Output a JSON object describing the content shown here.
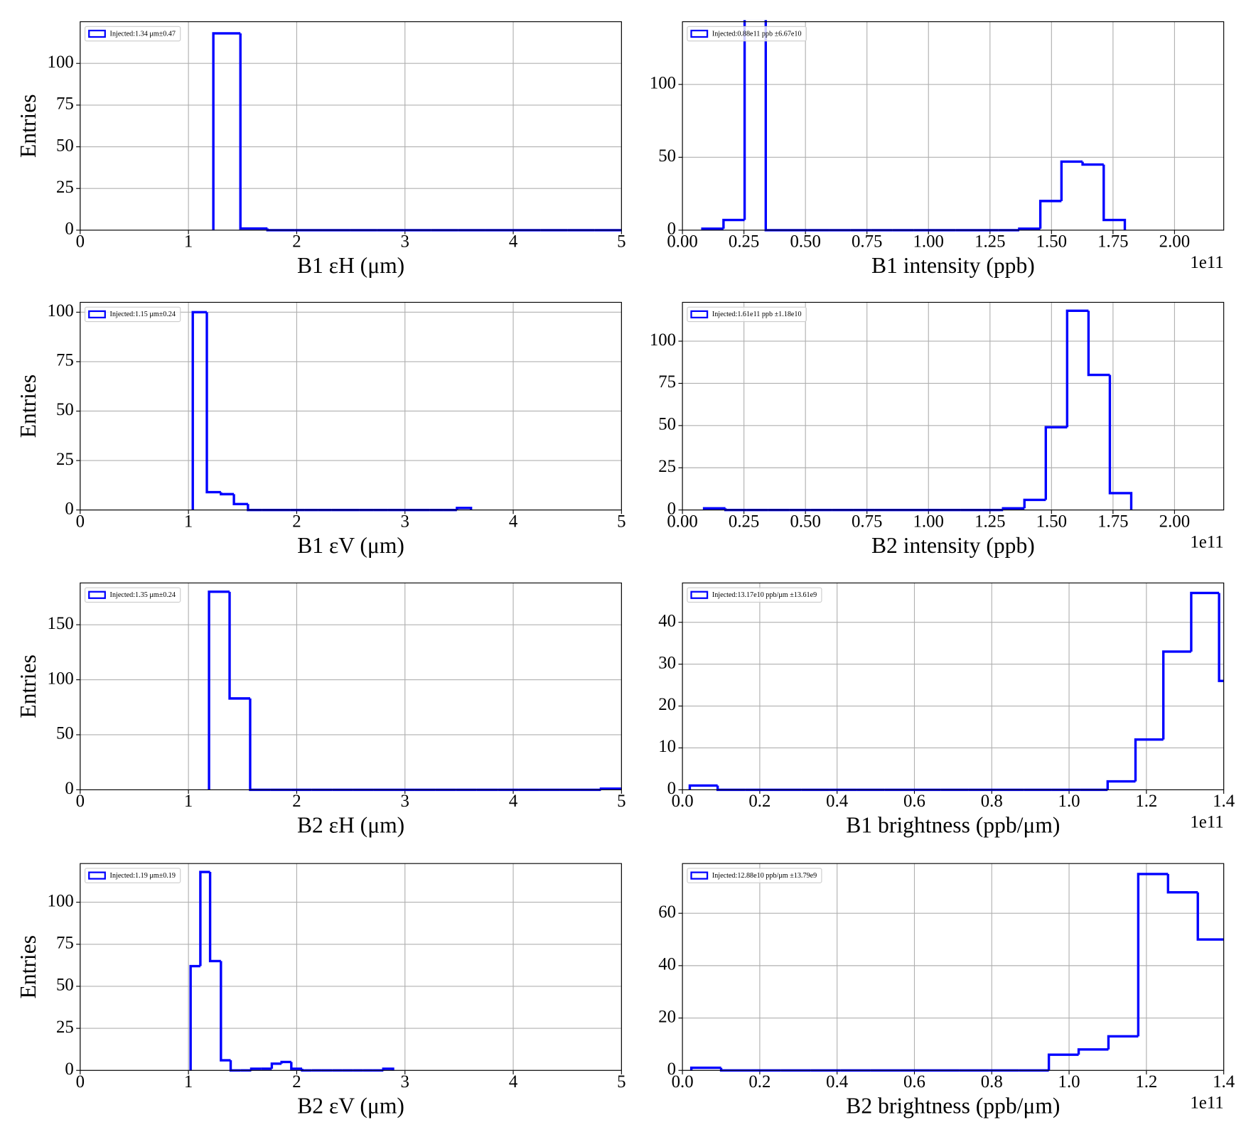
{
  "chart_data": [
    {
      "type": "histogram",
      "xlabel": "B1 εH (μm)",
      "ylabel": "Entries",
      "name": "Injected:1.34 μm±0.47",
      "color": "#0000ff",
      "legend": "upper left",
      "grid": true,
      "bins": [
        1.23,
        1.48,
        1.73,
        1.98,
        2.24,
        2.49,
        2.74,
        2.99,
        3.24,
        3.49,
        3.74,
        3.99,
        4.25,
        4.5,
        4.75,
        5.0
      ],
      "counts": [
        118,
        1,
        0,
        0,
        0,
        0,
        0,
        0,
        0,
        0,
        0,
        0,
        0,
        0,
        0
      ],
      "xlim": [
        0,
        5
      ],
      "xticks": [
        0,
        1,
        2,
        3,
        4,
        5
      ],
      "ylim": [
        0,
        125
      ],
      "yticks": [
        0,
        25,
        50,
        75,
        100
      ]
    },
    {
      "type": "histogram",
      "xlabel": "B1 intensity (ppb)",
      "offset_text": "1e11",
      "name": "Injected:0.88e11 ppb ±6.67e10",
      "color": "#0000ff",
      "legend": "upper left",
      "grid": true,
      "bins": [
        8100000000.0,
        16690000000.0,
        25270000000.0,
        33860000000.0,
        42440000000.0,
        51030000000.0,
        59610000000.0,
        68200000000.0,
        76780000000.0,
        85370000000.0,
        93950000000.0,
        102540000000.0,
        111120000000.0,
        119710000000.0,
        128290000000.0,
        136880000000.0,
        145460000000.0,
        154050000000.0,
        162630000000.0,
        171220000000.0,
        179800000000.0
      ],
      "counts": [
        1,
        7,
        145,
        0,
        0,
        0,
        0,
        0,
        0,
        0,
        0,
        0,
        0,
        0,
        0,
        1,
        20,
        47,
        45,
        7
      ],
      "xlim": [
        0,
        220000000000.0
      ],
      "xticks": [
        {
          "value": 0,
          "label": "0.00"
        },
        {
          "value": 25000000000.0,
          "label": "0.25"
        },
        {
          "value": 50000000000.0,
          "label": "0.50"
        },
        {
          "value": 75000000000.0,
          "label": "0.75"
        },
        {
          "value": 100000000000.0,
          "label": "1.00"
        },
        {
          "value": 125000000000.0,
          "label": "1.25"
        },
        {
          "value": 150000000000.0,
          "label": "1.50"
        },
        {
          "value": 175000000000.0,
          "label": "1.75"
        },
        {
          "value": 200000000000.0,
          "label": "2.00"
        }
      ],
      "ylim": [
        0,
        143
      ],
      "yticks": [
        0,
        50,
        100
      ]
    },
    {
      "type": "histogram",
      "xlabel": "B1 εV (μm)",
      "ylabel": "Entries",
      "name": "Injected:1.15 μm±0.24",
      "color": "#0000ff",
      "legend": "upper left",
      "grid": true,
      "bins": [
        1.04,
        1.17,
        1.3,
        1.42,
        1.55,
        1.68,
        1.81,
        1.94,
        2.07,
        2.2,
        2.32,
        2.45,
        2.58,
        2.71,
        2.84,
        2.97,
        3.1,
        3.23,
        3.35,
        3.48,
        3.61
      ],
      "counts": [
        100,
        9,
        8,
        3,
        0,
        0,
        0,
        0,
        0,
        0,
        0,
        0,
        0,
        0,
        0,
        0,
        0,
        0,
        0,
        1
      ],
      "xlim": [
        0,
        5
      ],
      "xticks": [
        0,
        1,
        2,
        3,
        4,
        5
      ],
      "ylim": [
        0,
        105
      ],
      "yticks": [
        0,
        25,
        50,
        75,
        100
      ]
    },
    {
      "type": "histogram",
      "xlabel": "B2 intensity (ppb)",
      "offset_text": "1e11",
      "name": "Injected:1.61e11 ppb ±1.18e10",
      "color": "#0000ff",
      "legend": "upper left",
      "grid": true,
      "bins": [
        8800000000.0,
        17480000000.0,
        26160000000.0,
        34840000000.0,
        43520000000.0,
        52200000000.0,
        60880000000.0,
        69560000000.0,
        78240000000.0,
        86920000000.0,
        95600000000.0,
        104280000000.0,
        112960000000.0,
        121640000000.0,
        130320000000.0,
        139000000000.0,
        147680000000.0,
        156360000000.0,
        165040000000.0,
        173720000000.0,
        182400000000.0
      ],
      "counts": [
        1,
        0,
        0,
        0,
        0,
        0,
        0,
        0,
        0,
        0,
        0,
        0,
        0,
        0,
        1,
        6,
        49,
        118,
        80,
        10
      ],
      "xlim": [
        0,
        220000000000.0
      ],
      "xticks": [
        {
          "value": 0,
          "label": "0.00"
        },
        {
          "value": 25000000000.0,
          "label": "0.25"
        },
        {
          "value": 50000000000.0,
          "label": "0.50"
        },
        {
          "value": 75000000000.0,
          "label": "0.75"
        },
        {
          "value": 100000000000.0,
          "label": "1.00"
        },
        {
          "value": 125000000000.0,
          "label": "1.25"
        },
        {
          "value": 150000000000.0,
          "label": "1.50"
        },
        {
          "value": 175000000000.0,
          "label": "1.75"
        },
        {
          "value": 200000000000.0,
          "label": "2.00"
        }
      ],
      "ylim": [
        0,
        123
      ],
      "yticks": [
        0,
        25,
        50,
        75,
        100
      ]
    },
    {
      "type": "histogram",
      "xlabel": "B2 εH (μm)",
      "ylabel": "Entries",
      "name": "Injected:1.35 μm±0.24",
      "color": "#0000ff",
      "legend": "upper left",
      "grid": true,
      "bins": [
        1.19,
        1.38,
        1.57,
        1.76,
        1.95,
        2.14,
        2.33,
        2.52,
        2.71,
        2.9,
        3.09,
        3.28,
        3.47,
        3.66,
        3.86,
        4.05,
        4.24,
        4.43,
        4.62,
        4.81,
        5.0
      ],
      "counts": [
        180,
        83,
        0,
        0,
        0,
        0,
        0,
        0,
        0,
        0,
        0,
        0,
        0,
        0,
        0,
        0,
        0,
        0,
        0,
        1
      ],
      "xlim": [
        0,
        5
      ],
      "xticks": [
        0,
        1,
        2,
        3,
        4,
        5
      ],
      "ylim": [
        0,
        188
      ],
      "yticks": [
        0,
        50,
        100,
        150
      ]
    },
    {
      "type": "histogram",
      "xlabel": "B1 brightness (ppb/μm)",
      "offset_text": "1e11",
      "name": "Injected:13.17e10 ppb/μm ±13.61e9",
      "color": "#0000ff",
      "legend": "upper left",
      "grid": true,
      "bins": [
        1900000000.0,
        9105000000.0,
        16310000000.0,
        23515000000.0,
        30720000000.0,
        37925000000.0,
        45130000000.0,
        52335000000.0,
        59540000000.0,
        66745000000.0,
        73950000000.0,
        81155000000.0,
        88360000000.0,
        95565000000.0,
        102770000000.0,
        109975000000.0,
        117180000000.0,
        124385000000.0,
        131590000000.0,
        138795000000.0,
        146000000000.0
      ],
      "counts": [
        1,
        0,
        0,
        0,
        0,
        0,
        0,
        0,
        0,
        0,
        0,
        0,
        0,
        0,
        0,
        2,
        12,
        33,
        47,
        26
      ],
      "xlim": [
        0,
        140000000000.0
      ],
      "xticks": [
        {
          "value": 0,
          "label": "0.0"
        },
        {
          "value": 20000000000.0,
          "label": "0.2"
        },
        {
          "value": 40000000000.0,
          "label": "0.4"
        },
        {
          "value": 60000000000.0,
          "label": "0.6"
        },
        {
          "value": 80000000000.0,
          "label": "0.8"
        },
        {
          "value": 100000000000.0,
          "label": "1.0"
        },
        {
          "value": 120000000000.0,
          "label": "1.2"
        },
        {
          "value": 140000000000.0,
          "label": "1.4"
        }
      ],
      "ylim": [
        0,
        49.4
      ],
      "yticks": [
        0,
        10,
        20,
        30,
        40
      ]
    },
    {
      "type": "histogram",
      "xlabel": "B2 εV (μm)",
      "ylabel": "Entries",
      "name": "Injected:1.19 μm±0.19",
      "color": "#0000ff",
      "legend": "upper left",
      "grid": true,
      "bins": [
        1.02,
        1.11,
        1.2,
        1.3,
        1.39,
        1.48,
        1.58,
        1.67,
        1.77,
        1.86,
        1.95,
        2.05,
        2.14,
        2.23,
        2.33,
        2.42,
        2.52,
        2.61,
        2.7,
        2.8,
        2.89
      ],
      "counts": [
        62,
        118,
        65,
        6,
        0,
        0,
        1,
        1,
        4,
        5,
        1,
        0,
        0,
        0,
        0,
        0,
        0,
        0,
        0,
        1
      ],
      "xlim": [
        0,
        5
      ],
      "xticks": [
        0,
        1,
        2,
        3,
        4,
        5
      ],
      "ylim": [
        0,
        123
      ],
      "yticks": [
        0,
        25,
        50,
        75,
        100
      ]
    },
    {
      "type": "histogram",
      "xlabel": "B2 brightness (ppb/μm)",
      "offset_text": "1e11",
      "name": "Injected:12.88e10 ppb/μm ±13.79e9",
      "color": "#0000ff",
      "legend": "upper left",
      "grid": true,
      "bins": [
        2300000000.0,
        10006000000.0,
        17712000000.0,
        25418000000.0,
        33124000000.0,
        40830000000.0,
        48536000000.0,
        56242000000.0,
        63948000000.0,
        71654000000.0,
        79360000000.0,
        87066000000.0,
        94772000000.0,
        102478000000.0,
        110184000000.0,
        117890000000.0,
        125596000000.0,
        133302000000.0,
        141008000000.0
      ],
      "counts": [
        1,
        0,
        0,
        0,
        0,
        0,
        0,
        0,
        0,
        0,
        0,
        0,
        6,
        8,
        13,
        75,
        68,
        50
      ],
      "xlim": [
        0,
        140000000000.0
      ],
      "xticks": [
        {
          "value": 0,
          "label": "0.0"
        },
        {
          "value": 20000000000.0,
          "label": "0.2"
        },
        {
          "value": 40000000000.0,
          "label": "0.4"
        },
        {
          "value": 60000000000.0,
          "label": "0.6"
        },
        {
          "value": 80000000000.0,
          "label": "0.8"
        },
        {
          "value": 100000000000.0,
          "label": "1.0"
        },
        {
          "value": 120000000000.0,
          "label": "1.2"
        },
        {
          "value": 140000000000.0,
          "label": "1.4"
        }
      ],
      "ylim": [
        0,
        79
      ],
      "yticks": [
        0,
        20,
        40,
        60
      ]
    }
  ]
}
